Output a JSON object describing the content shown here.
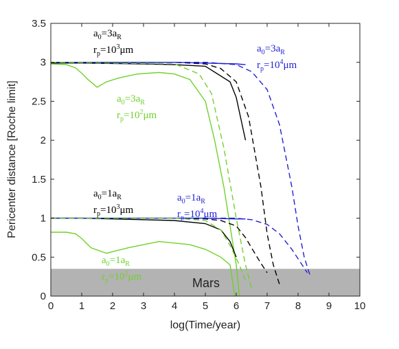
{
  "chart_data": {
    "type": "line",
    "title": "",
    "xlabel": "log(Time/year)",
    "ylabel": "Pericenter distance [Roche limit]",
    "xlim": [
      0,
      10
    ],
    "ylim": [
      0,
      3.5
    ],
    "xticks": [
      "0",
      "1",
      "2",
      "3",
      "4",
      "5",
      "6",
      "7",
      "8",
      "9",
      "10"
    ],
    "yticks": [
      "0",
      "0.5",
      "1",
      "1.5",
      "2",
      "2.5",
      "3",
      "3.5"
    ],
    "grid": false,
    "colors": {
      "black": "#000000",
      "blue": "#1f1fd6",
      "green": "#6fd12a",
      "mars": "#b3b3b3"
    },
    "mars_band": {
      "label": "Mars",
      "y_min": 0,
      "y_max": 0.35
    },
    "series": [
      {
        "group": "a0=3, rp=1e3",
        "color": "black",
        "style": "solid",
        "x": [
          0,
          1.0,
          2.0,
          3.0,
          4.0,
          5.0,
          5.8,
          6.0,
          6.3
        ],
        "y": [
          2.99,
          2.99,
          2.985,
          2.98,
          2.97,
          2.95,
          2.75,
          2.55,
          2.0
        ]
      },
      {
        "group": "a0=3, rp=1e3",
        "color": "black",
        "style": "dashed",
        "x": [
          0,
          4.0,
          5.0,
          5.5,
          6.0,
          6.4,
          6.8,
          7.0,
          7.2,
          7.4
        ],
        "y": [
          3.0,
          3.0,
          2.98,
          2.92,
          2.75,
          2.3,
          1.4,
          0.8,
          0.4,
          0.15
        ]
      },
      {
        "group": "a0=3, rp=1e4",
        "color": "blue",
        "style": "solid",
        "x": [
          0,
          2.0,
          4.0,
          5.0,
          6.0,
          6.3
        ],
        "y": [
          3.0,
          3.0,
          3.0,
          2.99,
          2.98,
          2.97
        ]
      },
      {
        "group": "a0=3, rp=1e4",
        "color": "blue",
        "style": "dashed",
        "x": [
          0,
          5.0,
          6.0,
          6.5,
          7.0,
          7.4,
          7.8,
          8.0,
          8.2,
          8.4
        ],
        "y": [
          3.0,
          3.0,
          2.97,
          2.88,
          2.65,
          2.2,
          1.4,
          0.9,
          0.5,
          0.25
        ]
      },
      {
        "group": "a0=3, rp=1e2",
        "color": "green",
        "style": "solid",
        "x": [
          0,
          0.5,
          0.8,
          1.0,
          1.2,
          1.5,
          1.8,
          2.2,
          2.8,
          3.5,
          4.0,
          4.5,
          5.0,
          5.3,
          5.6,
          5.8,
          6.0,
          6.1
        ],
        "y": [
          2.98,
          2.97,
          2.93,
          2.86,
          2.78,
          2.68,
          2.75,
          2.8,
          2.85,
          2.87,
          2.85,
          2.78,
          2.5,
          2.0,
          1.4,
          0.9,
          0.4,
          0.0
        ]
      },
      {
        "group": "a0=3, rp=1e2",
        "color": "green",
        "style": "dashed",
        "x": [
          0,
          4.0,
          4.8,
          5.2,
          5.6,
          6.0,
          6.3,
          6.5
        ],
        "y": [
          3.0,
          2.98,
          2.85,
          2.6,
          1.9,
          1.0,
          0.4,
          0.1
        ]
      },
      {
        "group": "a0=1, rp=1e3",
        "color": "black",
        "style": "solid",
        "x": [
          0,
          1.0,
          2.0,
          3.0,
          4.0,
          5.0,
          5.5,
          5.8,
          6.0
        ],
        "y": [
          1.0,
          1.0,
          0.99,
          0.98,
          0.97,
          0.93,
          0.85,
          0.7,
          0.5
        ]
      },
      {
        "group": "a0=1, rp=1e3",
        "color": "black",
        "style": "dashed",
        "x": [
          0,
          4.0,
          5.0,
          5.5,
          6.0,
          6.3,
          6.6,
          6.8,
          7.0
        ],
        "y": [
          1.0,
          1.0,
          0.99,
          0.97,
          0.9,
          0.75,
          0.55,
          0.42,
          0.3
        ]
      },
      {
        "group": "a0=1, rp=1e4",
        "color": "blue",
        "style": "solid",
        "x": [
          0,
          2.0,
          4.0,
          5.0,
          6.0,
          6.3
        ],
        "y": [
          1.0,
          1.0,
          1.0,
          1.0,
          0.99,
          0.99
        ]
      },
      {
        "group": "a0=1, rp=1e4",
        "color": "blue",
        "style": "dashed",
        "x": [
          0,
          6.0,
          6.5,
          7.0,
          7.4,
          7.8,
          8.1,
          8.3
        ],
        "y": [
          1.0,
          1.0,
          0.98,
          0.92,
          0.8,
          0.6,
          0.42,
          0.3
        ]
      },
      {
        "group": "a0=1, rp=1e2",
        "color": "green",
        "style": "solid",
        "x": [
          0,
          0.5,
          0.8,
          1.0,
          1.3,
          1.8,
          2.5,
          3.5,
          4.5,
          5.0,
          5.5,
          5.8,
          5.95
        ],
        "y": [
          0.82,
          0.82,
          0.8,
          0.74,
          0.62,
          0.55,
          0.62,
          0.7,
          0.66,
          0.6,
          0.5,
          0.4,
          0.0
        ]
      },
      {
        "group": "a0=1, rp=1e2",
        "color": "green",
        "style": "dashed",
        "x": [
          0,
          4.0,
          5.0,
          5.5,
          5.8,
          6.1,
          6.3
        ],
        "y": [
          1.0,
          1.0,
          0.97,
          0.85,
          0.65,
          0.4,
          0.2
        ]
      }
    ],
    "annotations": [
      {
        "color": "black",
        "a0_label": "a",
        "a0_sub": "0",
        "a0_text": "=3a",
        "a0_sub2": "R",
        "rp_label": "r",
        "rp_sub": "p",
        "rp_text": "=10",
        "rp_sup": "3",
        "rp_unit": "μm"
      },
      {
        "color": "blue",
        "a0_label": "a",
        "a0_sub": "0",
        "a0_text": "=3a",
        "a0_sub2": "R",
        "rp_label": "r",
        "rp_sub": "p",
        "rp_text": "=10",
        "rp_sup": "4",
        "rp_unit": "μm"
      },
      {
        "color": "green",
        "a0_label": "a",
        "a0_sub": "0",
        "a0_text": "=3a",
        "a0_sub2": "R",
        "rp_label": "r",
        "rp_sub": "p",
        "rp_text": "=10",
        "rp_sup": "2",
        "rp_unit": "μm"
      },
      {
        "color": "black",
        "a0_label": "a",
        "a0_sub": "0",
        "a0_text": "=1a",
        "a0_sub2": "R",
        "rp_label": "r",
        "rp_sub": "p",
        "rp_text": "=10",
        "rp_sup": "3",
        "rp_unit": "μm"
      },
      {
        "color": "blue",
        "a0_label": "a",
        "a0_sub": "0",
        "a0_text": "=1a",
        "a0_sub2": "R",
        "rp_label": "r",
        "rp_sub": "p",
        "rp_text": "=10",
        "rp_sup": "4",
        "rp_unit": "μm"
      },
      {
        "color": "green",
        "a0_label": "a",
        "a0_sub": "0",
        "a0_text": "=1a",
        "a0_sub2": "R",
        "rp_label": "r",
        "rp_sub": "p",
        "rp_text": "=10",
        "rp_sup": "2",
        "rp_unit": "μm"
      }
    ]
  }
}
